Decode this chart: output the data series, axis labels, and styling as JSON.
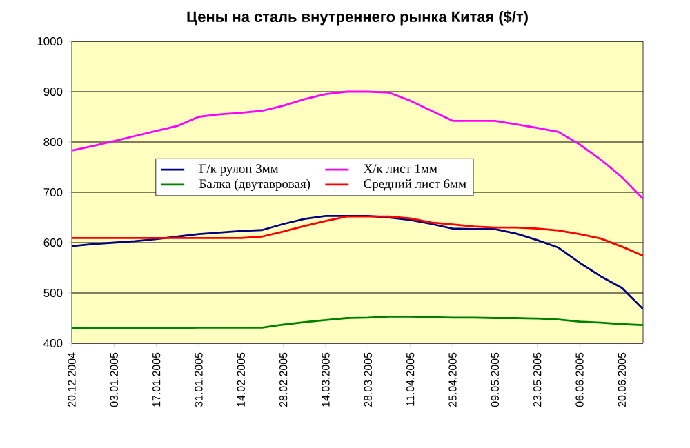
{
  "chart_data": {
    "type": "line",
    "title": "Цены на сталь внутреннего рынка Китая ($/т)",
    "x": [
      "2004-12-20",
      "2004-12-27",
      "2005-01-03",
      "2005-01-10",
      "2005-01-17",
      "2005-01-24",
      "2005-01-31",
      "2005-02-07",
      "2005-02-14",
      "2005-02-21",
      "2005-02-28",
      "2005-03-07",
      "2005-03-14",
      "2005-03-21",
      "2005-03-28",
      "2005-04-04",
      "2005-04-11",
      "2005-04-18",
      "2005-04-25",
      "2005-05-02",
      "2005-05-09",
      "2005-05-16",
      "2005-05-23",
      "2005-05-30",
      "2005-06-06",
      "2005-06-13",
      "2005-06-20",
      "2005-06-27"
    ],
    "series": [
      {
        "name": "Г/к рулон 3мм",
        "color": "#000080",
        "values": [
          593,
          597,
          600,
          603,
          607,
          612,
          617,
          620,
          623,
          625,
          637,
          647,
          653,
          653,
          653,
          650,
          645,
          637,
          628,
          627,
          627,
          618,
          605,
          590,
          560,
          533,
          510,
          468
        ]
      },
      {
        "name": "Х/к лист 1мм",
        "color": "#ff00ff",
        "values": [
          783,
          792,
          802,
          812,
          822,
          832,
          850,
          855,
          858,
          862,
          872,
          885,
          895,
          900,
          900,
          898,
          882,
          862,
          842,
          842,
          842,
          835,
          828,
          820,
          795,
          765,
          730,
          687
        ]
      },
      {
        "name": "Балка (двутавровая)",
        "color": "#008000",
        "values": [
          430,
          430,
          430,
          430,
          430,
          430,
          431,
          431,
          431,
          431,
          437,
          442,
          446,
          450,
          451,
          453,
          453,
          452,
          451,
          451,
          450,
          450,
          449,
          447,
          443,
          441,
          438,
          436
        ]
      },
      {
        "name": "Средний лист 6мм",
        "color": "#ff0000",
        "values": [
          609,
          609,
          609,
          609,
          609,
          609,
          609,
          609,
          609,
          612,
          622,
          633,
          643,
          652,
          652,
          652,
          648,
          640,
          636,
          632,
          630,
          630,
          628,
          624,
          617,
          608,
          592,
          574
        ]
      }
    ],
    "xlim": [
      "2004-12-20",
      "2005-06-27"
    ],
    "xticks": [
      {
        "value": "2004-12-20",
        "label": "20.12.2004"
      },
      {
        "value": "2005-01-03",
        "label": "03.01.2005"
      },
      {
        "value": "2005-01-17",
        "label": "17.01.2005"
      },
      {
        "value": "2005-01-31",
        "label": "31.01.2005"
      },
      {
        "value": "2005-02-14",
        "label": "14.02.2005"
      },
      {
        "value": "2005-02-28",
        "label": "28.02.2005"
      },
      {
        "value": "2005-03-14",
        "label": "14.03.2005"
      },
      {
        "value": "2005-03-28",
        "label": "28.03.2005"
      },
      {
        "value": "2005-04-11",
        "label": "11.04.2005"
      },
      {
        "value": "2005-04-25",
        "label": "25.04.2005"
      },
      {
        "value": "2005-05-09",
        "label": "09.05.2005"
      },
      {
        "value": "2005-05-23",
        "label": "23.05.2005"
      },
      {
        "value": "2005-06-06",
        "label": "06.06.2005"
      },
      {
        "value": "2005-06-20",
        "label": "20.06.2005"
      }
    ],
    "ylim": [
      400,
      1000
    ],
    "yticks": [
      400,
      500,
      600,
      700,
      800,
      900,
      1000
    ],
    "grid": "y",
    "legend": "center"
  }
}
